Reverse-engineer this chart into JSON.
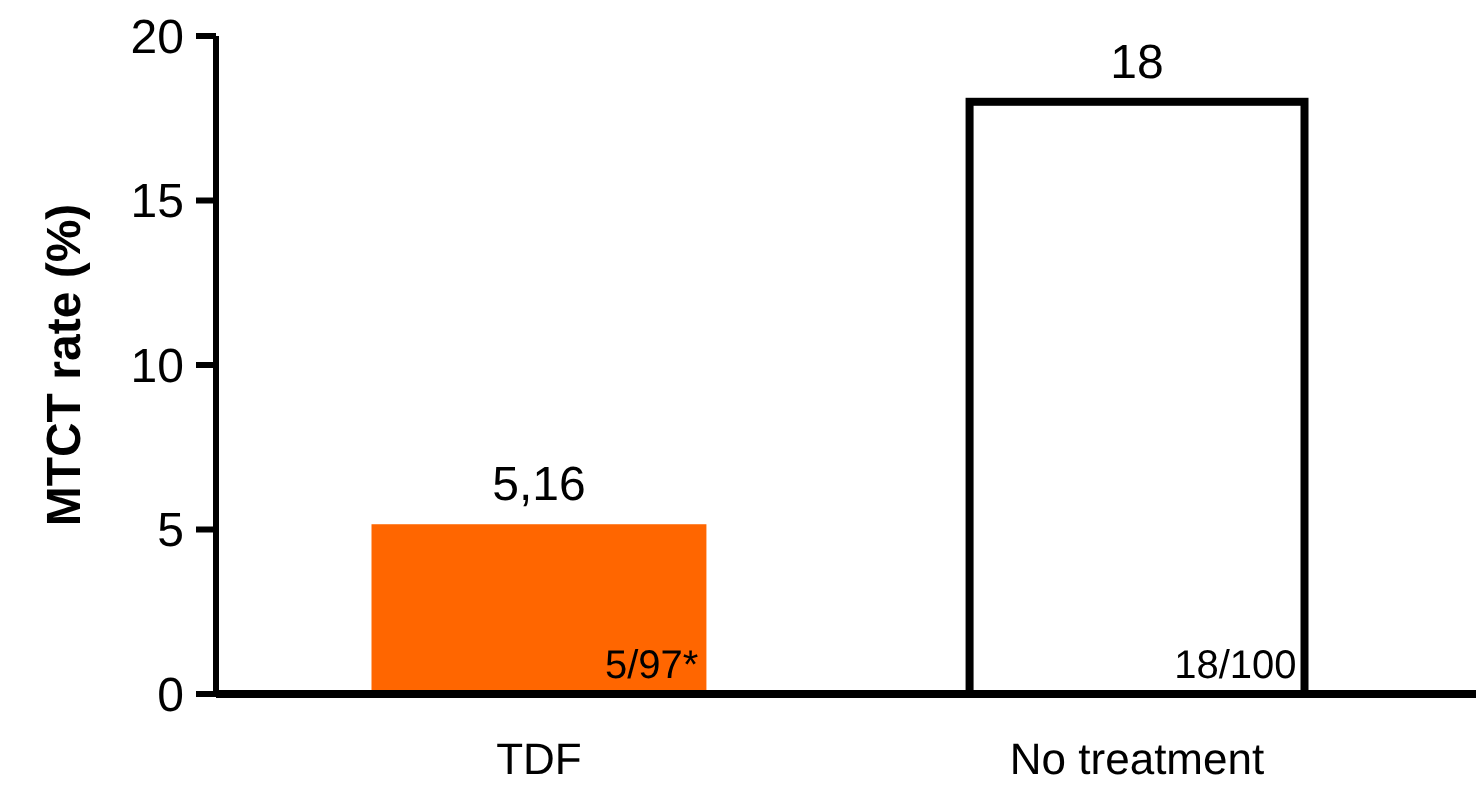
{
  "chart_data": {
    "type": "bar",
    "ylabel": "MTCT rate (%)",
    "categories": [
      "TDF",
      "No treatment"
    ],
    "values": [
      5.16,
      18
    ],
    "colors": [
      "#ff6600",
      "#ffffff"
    ],
    "value_labels": [
      "5,16",
      "18"
    ],
    "ylim": [
      0,
      20
    ],
    "yticks": [
      0,
      5,
      10,
      15,
      20
    ],
    "grid": false,
    "annotations": [
      "5/97*",
      "18/100"
    ]
  }
}
